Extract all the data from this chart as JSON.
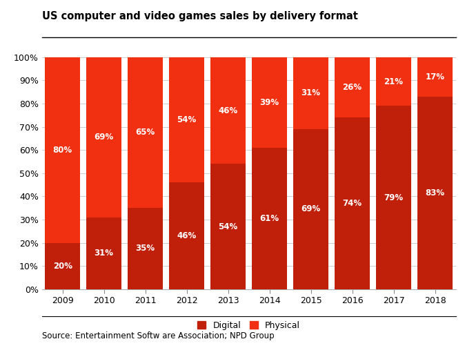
{
  "title": "US computer and video games sales by delivery format",
  "source": "Source: Entertainment Softw are Association; NPD Group",
  "years": [
    "2009",
    "2010",
    "2011",
    "2012",
    "2013",
    "2014",
    "2015",
    "2016",
    "2017",
    "2018"
  ],
  "digital": [
    20,
    31,
    35,
    46,
    54,
    61,
    69,
    74,
    79,
    83
  ],
  "physical": [
    80,
    69,
    65,
    54,
    46,
    39,
    31,
    26,
    21,
    17
  ],
  "digital_color": "#c0200a",
  "physical_color": "#f03010",
  "background_color": "#ffffff",
  "ylim": [
    0,
    100
  ],
  "ylabel_ticks": [
    "0%",
    "10%",
    "20%",
    "30%",
    "40%",
    "50%",
    "60%",
    "70%",
    "80%",
    "90%",
    "100%"
  ],
  "legend_labels": [
    "Digital",
    "Physical"
  ],
  "title_fontsize": 10.5,
  "label_fontsize": 8.5,
  "tick_fontsize": 9,
  "source_fontsize": 8.5,
  "bar_width": 0.85
}
